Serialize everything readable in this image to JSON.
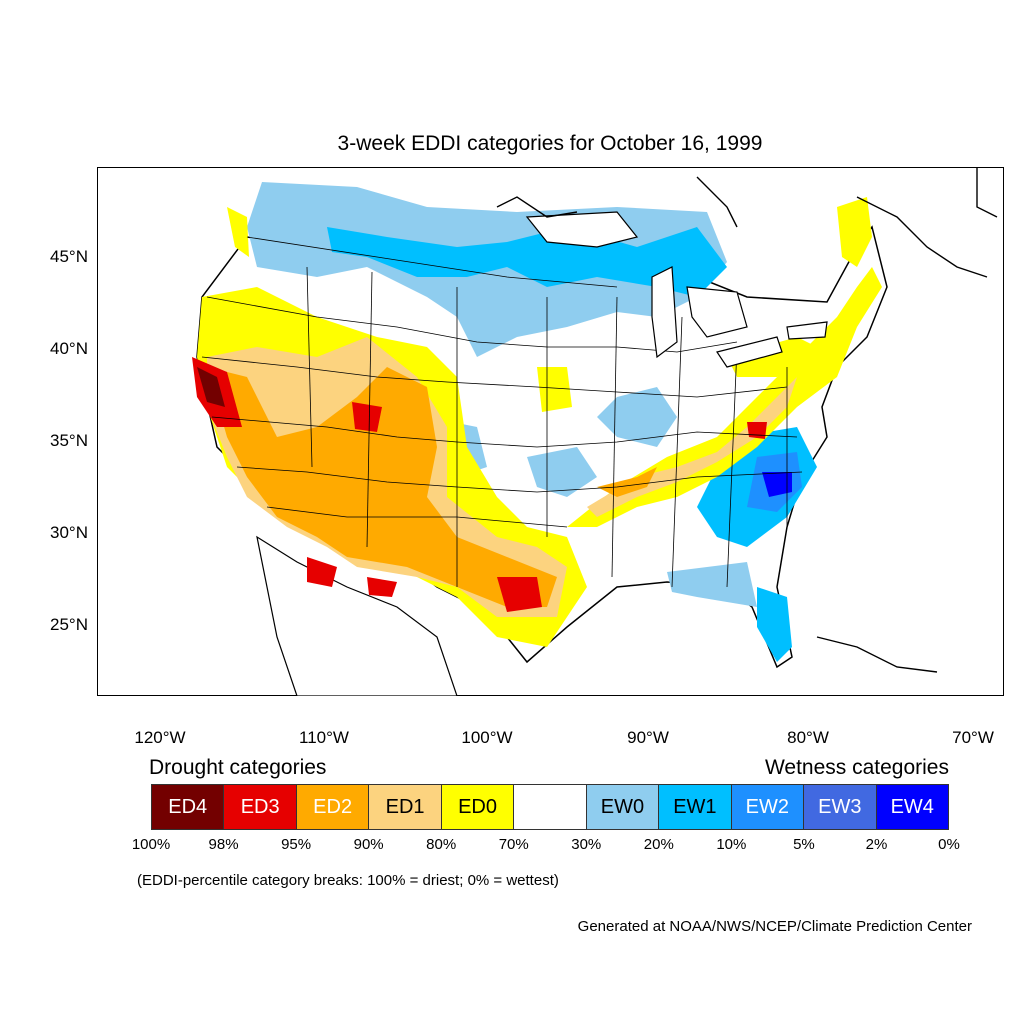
{
  "title": "3-week EDDI categories for October 16, 1999",
  "axes": {
    "lat_labels": [
      "45°N",
      "40°N",
      "35°N",
      "30°N",
      "25°N"
    ],
    "lon_labels": [
      "120°W",
      "110°W",
      "100°W",
      "90°W",
      "80°W",
      "70°W"
    ]
  },
  "legend": {
    "drought_title": "Drought categories",
    "wetness_title": "Wetness categories",
    "categories": [
      {
        "label": "ED4",
        "color": "#730000",
        "text_color": "#ffffff"
      },
      {
        "label": "ED3",
        "color": "#e60000",
        "text_color": "#ffffff"
      },
      {
        "label": "ED2",
        "color": "#ffaa00",
        "text_color": "#ffffff"
      },
      {
        "label": "ED1",
        "color": "#fcd37f",
        "text_color": "#000000"
      },
      {
        "label": "ED0",
        "color": "#ffff00",
        "text_color": "#000000"
      },
      {
        "label": "",
        "color": "#ffffff",
        "text_color": "#000000"
      },
      {
        "label": "EW0",
        "color": "#8fcdef",
        "text_color": "#000000"
      },
      {
        "label": "EW1",
        "color": "#00bfff",
        "text_color": "#000000"
      },
      {
        "label": "EW2",
        "color": "#1e90ff",
        "text_color": "#ffffff"
      },
      {
        "label": "EW3",
        "color": "#4169e1",
        "text_color": "#ffffff"
      },
      {
        "label": "EW4",
        "color": "#0000ff",
        "text_color": "#ffffff"
      }
    ],
    "percentiles": [
      "100%",
      "98%",
      "95%",
      "90%",
      "80%",
      "70%",
      "30%",
      "20%",
      "10%",
      "5%",
      "2%",
      "0%"
    ]
  },
  "note": "(EDDI-percentile category breaks: 100% = driest; 0% = wettest)",
  "credit": "Generated at NOAA/NWS/NCEP/Climate Prediction Center"
}
